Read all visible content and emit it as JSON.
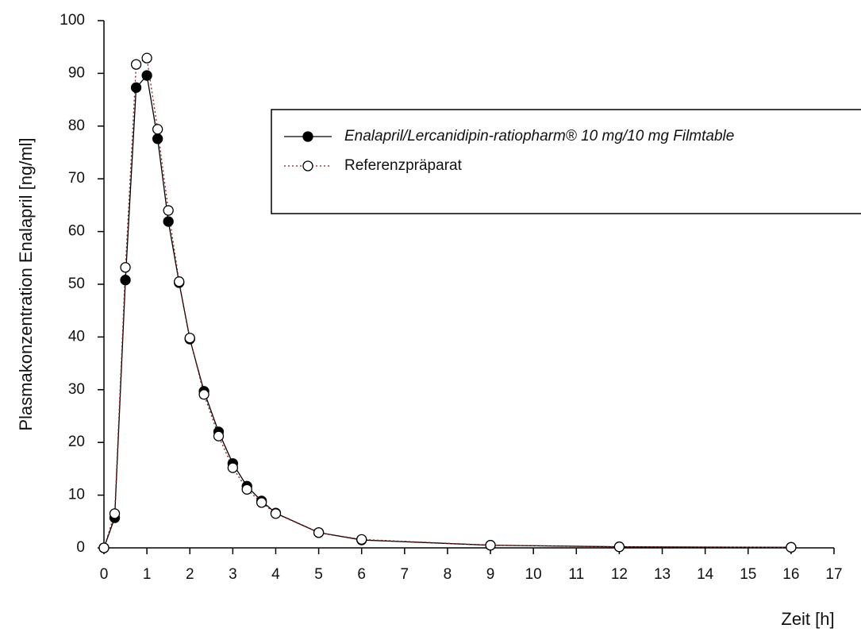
{
  "chart_data": {
    "type": "line",
    "x_label": "Zeit [h]",
    "y_label": "Plasmakonzentration Enalapril [ng/ml]",
    "x": [
      0,
      0.25,
      0.5,
      0.75,
      1,
      1.25,
      1.5,
      1.75,
      2,
      2.33,
      2.67,
      3,
      3.33,
      3.67,
      4,
      5,
      6,
      9,
      12,
      16
    ],
    "series": [
      {
        "name": "Enalapril/Lercanidipin-ratiopharm® 10 mg/10 mg Filmtable",
        "color": "#000000",
        "marker": "filled",
        "line": "solid",
        "values": [
          0,
          5.7,
          50.8,
          87.3,
          89.6,
          77.6,
          61.9,
          50.3,
          39.6,
          29.7,
          22,
          16,
          11.7,
          8.9,
          6.6,
          2.9,
          1.5,
          0.5,
          0.2,
          0.1
        ]
      },
      {
        "name": "Referenzpräparat",
        "color": "#8b1a1a",
        "marker": "open",
        "line": "dotted",
        "values": [
          0,
          6.5,
          53.2,
          91.7,
          92.9,
          79.4,
          64,
          50.5,
          39.8,
          29.1,
          21.2,
          15.2,
          11.1,
          8.6,
          6.5,
          2.9,
          1.6,
          0.5,
          0.2,
          0.1
        ]
      }
    ],
    "xlim": [
      0,
      17
    ],
    "xticks": [
      0,
      1,
      2,
      3,
      4,
      5,
      6,
      7,
      8,
      9,
      10,
      11,
      12,
      13,
      14,
      15,
      16,
      17
    ],
    "ylim": [
      0,
      100
    ],
    "yticks": [
      0,
      10,
      20,
      30,
      40,
      50,
      60,
      70,
      80,
      90,
      100
    ],
    "legend": "top-right"
  }
}
